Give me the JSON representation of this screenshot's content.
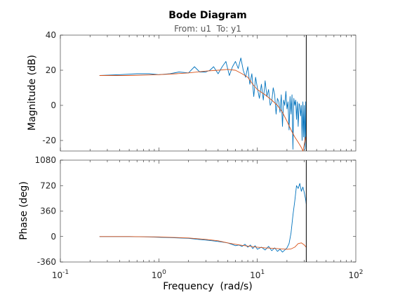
{
  "chart_data": {
    "type": "line",
    "title": "Bode Diagram",
    "subtitle": "From: u1  To: y1",
    "xlabel": "Frequency  (rad/s)",
    "xscale": "log",
    "xlim": [
      0.1,
      100
    ],
    "xticks": [
      {
        "value": 0.1,
        "base": "10",
        "exp": "-1"
      },
      {
        "value": 1,
        "base": "10",
        "exp": "0"
      },
      {
        "value": 10,
        "base": "10",
        "exp": "1"
      },
      {
        "value": 100,
        "base": "10",
        "exp": "2"
      }
    ],
    "nyquist_line_x": 31.4,
    "series_colors": {
      "estimate": "#0072BD",
      "model": "#D95319"
    },
    "panels": [
      {
        "name": "magnitude",
        "ylabel": "Magnitude (dB)",
        "ylim": [
          -26,
          40
        ],
        "yticks": [
          40,
          20,
          0,
          -20
        ],
        "series": [
          {
            "key": "estimate",
            "x": [
              0.25,
              0.4,
              0.6,
              0.8,
              1.0,
              1.3,
              1.6,
              2.0,
              2.3,
              2.6,
              3.0,
              3.3,
              3.6,
              4.0,
              4.4,
              4.8,
              5.2,
              5.6,
              6.0,
              6.4,
              6.8,
              7.2,
              7.6,
              8.0,
              8.4,
              8.8,
              9.2,
              9.6,
              10,
              10.5,
              11,
              11.5,
              12,
              12.5,
              13,
              13.5,
              14,
              14.5,
              15,
              15.5,
              16,
              16.5,
              17,
              17.5,
              18,
              18.5,
              19,
              19.5,
              20,
              20.5,
              21,
              21.5,
              22,
              22.5,
              23,
              23.5,
              24,
              24.5,
              25,
              25.5,
              26,
              26.5,
              27,
              27.5,
              28,
              28.5,
              29,
              29.5,
              30,
              30.5,
              31,
              31.4
            ],
            "y": [
              17,
              17.5,
              18,
              18,
              17.5,
              18,
              19,
              18.5,
              22,
              19,
              19,
              20,
              22,
              18,
              22,
              25,
              17,
              22,
              25,
              21,
              27,
              20,
              16,
              22,
              12,
              18,
              5,
              16,
              10,
              4,
              12,
              3,
              14,
              5,
              9,
              0,
              2,
              10,
              6,
              -5,
              4,
              2,
              -4,
              6,
              -12,
              3,
              0,
              8,
              -2,
              2,
              -14,
              5,
              -5,
              6,
              -25,
              4,
              0,
              3,
              -8,
              2,
              -12,
              1,
              0,
              -6,
              0,
              -20,
              2,
              -18,
              0,
              -25,
              2,
              -24
            ]
          },
          {
            "key": "model",
            "x": [
              0.25,
              0.5,
              1.0,
              1.5,
              2.0,
              3.0,
              4.0,
              5.0,
              6.0,
              7.0,
              8.0,
              9.0,
              10,
              12,
              14,
              16,
              18,
              20,
              22,
              24,
              26,
              28,
              29,
              30,
              31,
              31.4
            ],
            "y": [
              17,
              17,
              17.5,
              18,
              18.5,
              19.5,
              20,
              20.5,
              20,
              18,
              16,
              12,
              9,
              6,
              3,
              0,
              -4,
              -9,
              -14,
              -18,
              -21,
              -24,
              -26,
              -22,
              -18,
              -22
            ]
          }
        ]
      },
      {
        "name": "phase",
        "ylabel": "Phase (deg)",
        "ylim": [
          -360,
          1080
        ],
        "yticks": [
          1080,
          720,
          360,
          0,
          -360
        ],
        "series": [
          {
            "key": "estimate",
            "x": [
              0.25,
              0.5,
              0.8,
              1.0,
              1.3,
              1.6,
              2.0,
              2.5,
              3.0,
              3.5,
              4.0,
              4.5,
              5.0,
              5.5,
              6.0,
              6.5,
              7.0,
              7.5,
              8.0,
              8.5,
              9.0,
              9.5,
              10,
              11,
              12,
              13,
              14,
              15,
              16,
              17,
              18,
              19,
              20,
              21,
              22,
              23,
              24,
              25,
              26,
              27,
              28,
              29,
              30,
              31,
              31.4
            ],
            "y": [
              0,
              0,
              -5,
              -10,
              -15,
              -20,
              -25,
              -40,
              -50,
              -60,
              -70,
              -80,
              -90,
              -110,
              -130,
              -120,
              -140,
              -110,
              -150,
              -120,
              -170,
              -130,
              -180,
              -150,
              -190,
              -140,
              -200,
              -160,
              -210,
              -180,
              -220,
              -190,
              -160,
              -100,
              50,
              300,
              500,
              720,
              680,
              750,
              640,
              700,
              620,
              520,
              460
            ]
          },
          {
            "key": "model",
            "x": [
              0.25,
              0.5,
              1.0,
              2.0,
              3.0,
              4.0,
              5.0,
              6.0,
              7.0,
              8.0,
              10,
              12,
              14,
              16,
              18,
              20,
              22,
              24,
              26,
              28,
              30,
              31.4
            ],
            "y": [
              0,
              0,
              -5,
              -20,
              -40,
              -60,
              -90,
              -110,
              -125,
              -135,
              -150,
              -160,
              -165,
              -170,
              -175,
              -180,
              -175,
              -150,
              -100,
              -90,
              -120,
              -150
            ]
          }
        ]
      }
    ]
  }
}
